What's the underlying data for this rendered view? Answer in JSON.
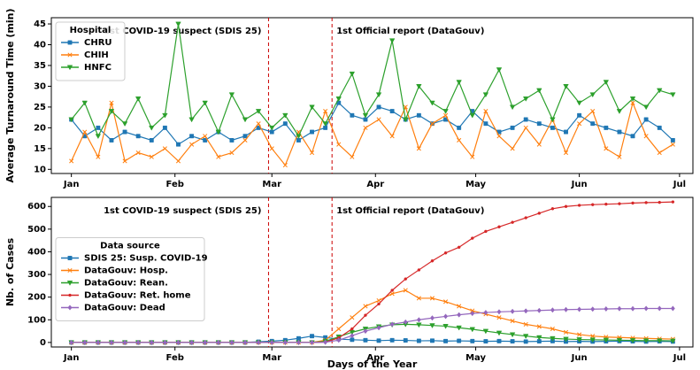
{
  "chart_data": [
    {
      "type": "line",
      "ylabel": "Average Turnaround Time (min)",
      "x": [
        0,
        4,
        8,
        12,
        16,
        20,
        24,
        28,
        32,
        36,
        40,
        44,
        48,
        52,
        56,
        60,
        64,
        68,
        72,
        76,
        80,
        84,
        88,
        92,
        96,
        100,
        104,
        108,
        112,
        116,
        120,
        124,
        128,
        132,
        136,
        140,
        144,
        148,
        152,
        156,
        160,
        164,
        168,
        172,
        176,
        180
      ],
      "xlim": [
        -6,
        186
      ],
      "xticks": [
        {
          "value": 0,
          "label": "Jan"
        },
        {
          "value": 31,
          "label": "Feb"
        },
        {
          "value": 60,
          "label": "Mar"
        },
        {
          "value": 91,
          "label": "Apr"
        },
        {
          "value": 121,
          "label": "May"
        },
        {
          "value": 152,
          "label": "Jun"
        },
        {
          "value": 182,
          "label": "Jul"
        }
      ],
      "ylim": [
        9,
        46.5
      ],
      "yticks": [
        10,
        15,
        20,
        25,
        30,
        35,
        40,
        45
      ],
      "vlines": [
        {
          "x": 59,
          "label": "1st COVID-19 suspect (SDIS 25)"
        },
        {
          "x": 78,
          "label": "1st Official report (DataGouv)"
        }
      ],
      "legend_title": "Hospital",
      "legend_loc": "upper left",
      "series": [
        {
          "name": "CHRU",
          "color": "#1f77b4",
          "values": [
            22,
            18,
            20,
            17,
            19,
            18,
            17,
            20,
            16,
            18,
            17,
            19,
            17,
            18,
            20,
            19,
            21,
            17,
            19,
            20,
            26,
            23,
            22,
            25,
            24,
            22,
            23,
            21,
            22,
            20,
            24,
            21,
            19,
            20,
            22,
            21,
            20,
            19,
            23,
            21,
            20,
            19,
            18,
            22,
            20,
            17
          ]
        },
        {
          "name": "CHIH",
          "color": "#ff7f0e",
          "values": [
            12,
            19,
            13,
            26,
            12,
            14,
            13,
            15,
            12,
            16,
            18,
            13,
            14,
            17,
            21,
            15,
            11,
            19,
            14,
            24,
            16,
            13,
            20,
            22,
            18,
            25,
            15,
            21,
            23,
            17,
            13,
            24,
            18,
            15,
            20,
            16,
            22,
            14,
            21,
            24,
            15,
            13,
            26,
            18,
            14,
            16
          ]
        },
        {
          "name": "HNFC",
          "color": "#2ca02c",
          "values": [
            22,
            26,
            18,
            24,
            21,
            27,
            20,
            23,
            45,
            22,
            26,
            19,
            28,
            22,
            24,
            20,
            23,
            18,
            25,
            21,
            27,
            33,
            23,
            28,
            41,
            22,
            30,
            26,
            24,
            31,
            23,
            28,
            34,
            25,
            27,
            29,
            22,
            30,
            26,
            28,
            31,
            24,
            27,
            25,
            29,
            28
          ]
        }
      ]
    },
    {
      "type": "line",
      "ylabel": "Nb. of Cases",
      "xlabel": "Days of the Year",
      "x": [
        0,
        4,
        8,
        12,
        16,
        20,
        24,
        28,
        32,
        36,
        40,
        44,
        48,
        52,
        56,
        60,
        64,
        68,
        72,
        76,
        80,
        84,
        88,
        92,
        96,
        100,
        104,
        108,
        112,
        116,
        120,
        124,
        128,
        132,
        136,
        140,
        144,
        148,
        152,
        156,
        160,
        164,
        168,
        172,
        176,
        180
      ],
      "xlim": [
        -6,
        186
      ],
      "xticks": [
        {
          "value": 0,
          "label": "Jan"
        },
        {
          "value": 31,
          "label": "Feb"
        },
        {
          "value": 60,
          "label": "Mar"
        },
        {
          "value": 91,
          "label": "Apr"
        },
        {
          "value": 121,
          "label": "May"
        },
        {
          "value": 152,
          "label": "Jun"
        },
        {
          "value": 182,
          "label": "Jul"
        }
      ],
      "ylim": [
        -20,
        640
      ],
      "yticks": [
        0,
        100,
        200,
        300,
        400,
        500,
        600
      ],
      "vlines": [
        {
          "x": 59,
          "label": "1st COVID-19 suspect (SDIS 25)"
        },
        {
          "x": 78,
          "label": "1st Official report (DataGouv)"
        }
      ],
      "legend_title": "Data source",
      "legend_loc": "center left",
      "series": [
        {
          "name": "SDIS 25: Susp. COVID-19",
          "color": "#1f77b4",
          "values": [
            0,
            0,
            0,
            0,
            0,
            0,
            0,
            0,
            0,
            0,
            0,
            0,
            0,
            0,
            3,
            6,
            10,
            18,
            28,
            22,
            15,
            12,
            10,
            8,
            10,
            9,
            7,
            8,
            6,
            7,
            6,
            5,
            6,
            5,
            4,
            5,
            6,
            4,
            5,
            4,
            5,
            6,
            5,
            4,
            5,
            4
          ]
        },
        {
          "name": "DataGouv: Hosp.",
          "color": "#ff7f0e",
          "values": [
            0,
            0,
            0,
            0,
            0,
            0,
            0,
            0,
            0,
            0,
            0,
            0,
            0,
            0,
            0,
            0,
            0,
            0,
            0,
            10,
            60,
            110,
            160,
            185,
            215,
            230,
            195,
            195,
            180,
            160,
            140,
            125,
            110,
            95,
            80,
            70,
            60,
            45,
            35,
            28,
            24,
            22,
            20,
            18,
            16,
            15
          ]
        },
        {
          "name": "DataGouv: Rean.",
          "color": "#2ca02c",
          "values": [
            0,
            0,
            0,
            0,
            0,
            0,
            0,
            0,
            0,
            0,
            0,
            0,
            0,
            0,
            0,
            0,
            0,
            0,
            0,
            5,
            25,
            45,
            60,
            70,
            78,
            80,
            78,
            75,
            72,
            65,
            58,
            50,
            42,
            35,
            28,
            22,
            18,
            15,
            13,
            12,
            11,
            10,
            9,
            8,
            8,
            7
          ]
        },
        {
          "name": "DataGouv: Ret. home",
          "color": "#d62728",
          "values": [
            0,
            0,
            0,
            0,
            0,
            0,
            0,
            0,
            0,
            0,
            0,
            0,
            0,
            0,
            0,
            0,
            0,
            0,
            0,
            2,
            20,
            60,
            120,
            170,
            230,
            280,
            320,
            360,
            395,
            420,
            460,
            490,
            510,
            530,
            550,
            570,
            590,
            600,
            605,
            608,
            610,
            612,
            615,
            617,
            618,
            620
          ]
        },
        {
          "name": "DataGouv: Dead",
          "color": "#9467bd",
          "values": [
            0,
            0,
            0,
            0,
            0,
            0,
            0,
            0,
            0,
            0,
            0,
            0,
            0,
            0,
            0,
            0,
            0,
            0,
            0,
            1,
            10,
            30,
            50,
            65,
            80,
            90,
            100,
            108,
            115,
            122,
            128,
            132,
            135,
            137,
            139,
            141,
            143,
            145,
            146,
            147,
            148,
            149,
            149,
            150,
            150,
            150
          ]
        }
      ]
    }
  ]
}
